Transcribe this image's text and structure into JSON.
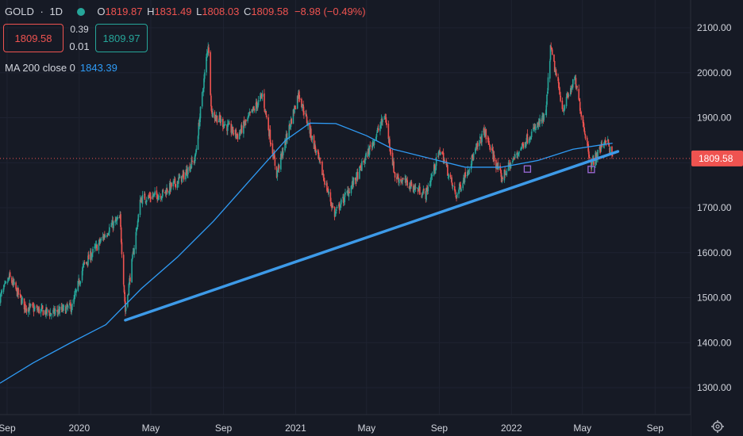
{
  "header": {
    "symbol": "GOLD",
    "interval": "1D",
    "open_label": "O",
    "open": "1819.87",
    "high_label": "H",
    "high": "1831.49",
    "low_label": "L",
    "low": "1808.03",
    "close_label": "C",
    "close": "1809.58",
    "change": "−8.98 (−0.49%)",
    "bid": "1809.58",
    "spread_top": "0.39",
    "spread_bottom": "0.01",
    "ask": "1809.97"
  },
  "ma": {
    "label": "MA 200 close 0",
    "value": "1843.39"
  },
  "colors": {
    "background": "#161a25",
    "up": "#26a69a",
    "down": "#ef5350",
    "ma": "#2f9bf5",
    "trendline": "#3d9ae8",
    "text": "#d1d4dc"
  },
  "chart_data": {
    "type": "candlestick",
    "title": "GOLD, 1D",
    "ylim": [
      1250,
      2150
    ],
    "y_ticks": [
      {
        "value": 2100,
        "label": "2100.00"
      },
      {
        "value": 2000,
        "label": "2000.00"
      },
      {
        "value": 1900,
        "label": "1900.00"
      },
      {
        "value": 1800,
        "label": "1800.00"
      },
      {
        "value": 1700,
        "label": "1700.00"
      },
      {
        "value": 1600,
        "label": "1600.00"
      },
      {
        "value": 1500,
        "label": "1500.00"
      },
      {
        "value": 1400,
        "label": "1400.00"
      },
      {
        "value": 1300,
        "label": "1300.00"
      }
    ],
    "x_range": [
      "2019-08-20",
      "2022-10-31"
    ],
    "x_ticks": [
      {
        "date": "2019-09-01",
        "label": "Sep"
      },
      {
        "date": "2020-01-01",
        "label": "2020"
      },
      {
        "date": "2020-05-01",
        "label": "May"
      },
      {
        "date": "2020-09-01",
        "label": "Sep"
      },
      {
        "date": "2021-01-01",
        "label": "2021"
      },
      {
        "date": "2021-05-01",
        "label": "May"
      },
      {
        "date": "2021-09-01",
        "label": "Sep"
      },
      {
        "date": "2022-01-01",
        "label": "2022"
      },
      {
        "date": "2022-05-01",
        "label": "May"
      },
      {
        "date": "2022-09-01",
        "label": "Sep"
      }
    ],
    "last_price": {
      "value": 1809.58,
      "label": "1809.58"
    },
    "price_path": [
      {
        "date": "2019-08-20",
        "close": 1500
      },
      {
        "date": "2019-09-05",
        "close": 1545
      },
      {
        "date": "2019-10-01",
        "close": 1480
      },
      {
        "date": "2019-11-15",
        "close": 1465
      },
      {
        "date": "2019-12-20",
        "close": 1480
      },
      {
        "date": "2020-01-08",
        "close": 1570
      },
      {
        "date": "2020-02-24",
        "close": 1660
      },
      {
        "date": "2020-03-10",
        "close": 1675
      },
      {
        "date": "2020-03-19",
        "close": 1470
      },
      {
        "date": "2020-04-14",
        "close": 1720
      },
      {
        "date": "2020-05-20",
        "close": 1730
      },
      {
        "date": "2020-06-25",
        "close": 1770
      },
      {
        "date": "2020-07-15",
        "close": 1810
      },
      {
        "date": "2020-08-06",
        "close": 2065
      },
      {
        "date": "2020-08-12",
        "close": 1910
      },
      {
        "date": "2020-09-25",
        "close": 1860
      },
      {
        "date": "2020-11-06",
        "close": 1950
      },
      {
        "date": "2020-11-30",
        "close": 1775
      },
      {
        "date": "2021-01-06",
        "close": 1955
      },
      {
        "date": "2021-03-08",
        "close": 1685
      },
      {
        "date": "2021-04-15",
        "close": 1770
      },
      {
        "date": "2021-06-01",
        "close": 1905
      },
      {
        "date": "2021-06-18",
        "close": 1770
      },
      {
        "date": "2021-08-09",
        "close": 1730
      },
      {
        "date": "2021-09-03",
        "close": 1830
      },
      {
        "date": "2021-09-29",
        "close": 1725
      },
      {
        "date": "2021-11-16",
        "close": 1870
      },
      {
        "date": "2021-12-15",
        "close": 1765
      },
      {
        "date": "2022-01-25",
        "close": 1850
      },
      {
        "date": "2022-02-28",
        "close": 1905
      },
      {
        "date": "2022-03-08",
        "close": 2055
      },
      {
        "date": "2022-03-29",
        "close": 1920
      },
      {
        "date": "2022-04-18",
        "close": 1985
      },
      {
        "date": "2022-05-16",
        "close": 1795
      },
      {
        "date": "2022-06-10",
        "close": 1855
      },
      {
        "date": "2022-06-21",
        "close": 1809.58
      }
    ],
    "ma200": {
      "label": "MA 200 close 0",
      "points": [
        {
          "date": "2019-08-20",
          "value": 1310
        },
        {
          "date": "2019-10-15",
          "value": 1355
        },
        {
          "date": "2019-12-15",
          "value": 1398
        },
        {
          "date": "2020-02-15",
          "value": 1440
        },
        {
          "date": "2020-04-15",
          "value": 1520
        },
        {
          "date": "2020-06-15",
          "value": 1590
        },
        {
          "date": "2020-08-15",
          "value": 1670
        },
        {
          "date": "2020-10-15",
          "value": 1760
        },
        {
          "date": "2020-12-15",
          "value": 1850
        },
        {
          "date": "2021-01-25",
          "value": 1888
        },
        {
          "date": "2021-03-10",
          "value": 1887
        },
        {
          "date": "2021-05-01",
          "value": 1860
        },
        {
          "date": "2021-06-15",
          "value": 1830
        },
        {
          "date": "2021-08-15",
          "value": 1810
        },
        {
          "date": "2021-10-15",
          "value": 1790
        },
        {
          "date": "2021-12-15",
          "value": 1790
        },
        {
          "date": "2022-02-15",
          "value": 1805
        },
        {
          "date": "2022-04-15",
          "value": 1830
        },
        {
          "date": "2022-06-21",
          "value": 1843.39
        }
      ]
    },
    "trendline": [
      {
        "date": "2020-03-19",
        "value": 1450
      },
      {
        "date": "2022-06-30",
        "value": 1825
      }
    ],
    "markers": [
      {
        "date": "2022-01-28",
        "value": 1786
      },
      {
        "date": "2022-05-16",
        "value": 1785
      }
    ]
  }
}
